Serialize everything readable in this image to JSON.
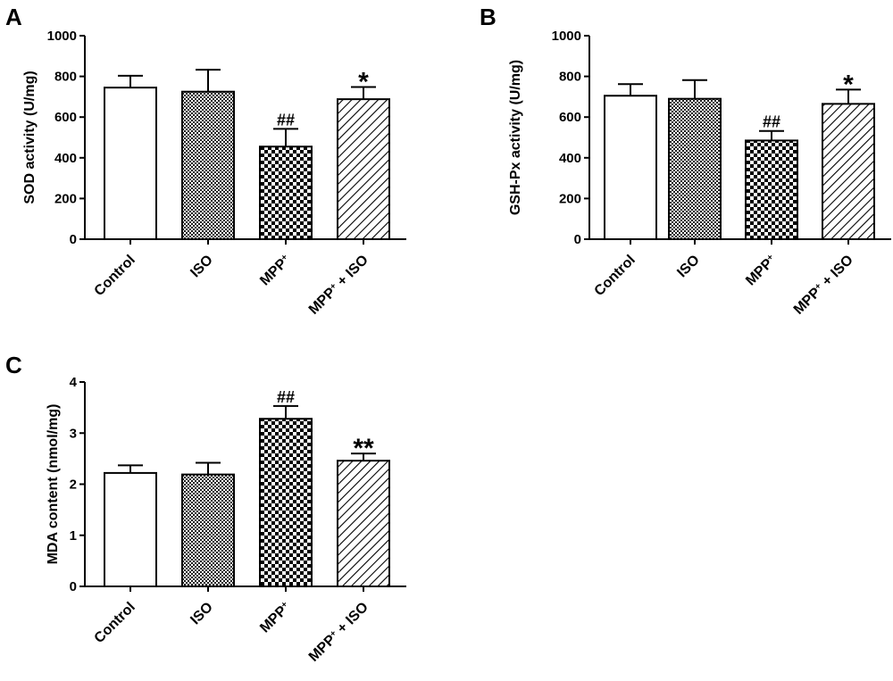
{
  "chart_data": [
    {
      "type": "bar",
      "panel": "A",
      "ylabel": "SOD activity (U/mg)",
      "ylim": [
        0,
        1000
      ],
      "yticks": [
        0,
        200,
        400,
        600,
        800,
        1000
      ],
      "categories": [
        "Control",
        "ISO",
        "MPP⁺",
        "MPP⁺ + ISO"
      ],
      "values": [
        745,
        725,
        455,
        688
      ],
      "errors": [
        58,
        108,
        87,
        60
      ],
      "annotations": [
        "",
        "",
        "##",
        "*"
      ],
      "fills": [
        "white",
        "fine-check",
        "checker",
        "diagonal-hatch"
      ]
    },
    {
      "type": "bar",
      "panel": "B",
      "ylabel": "GSH-Px activity (U/mg)",
      "ylim": [
        0,
        1000
      ],
      "yticks": [
        0,
        200,
        400,
        600,
        800,
        1000
      ],
      "categories": [
        "Control",
        "ISO",
        "MPP⁺",
        "MPP⁺ + ISO"
      ],
      "values": [
        705,
        690,
        485,
        665
      ],
      "errors": [
        57,
        92,
        47,
        70
      ],
      "annotations": [
        "",
        "",
        "##",
        "*"
      ],
      "fills": [
        "white",
        "fine-check",
        "checker",
        "diagonal-hatch"
      ]
    },
    {
      "type": "bar",
      "panel": "C",
      "ylabel": "MDA content (nmol/mg)",
      "ylim": [
        0,
        4
      ],
      "yticks": [
        0,
        1,
        2,
        3,
        4
      ],
      "categories": [
        "Control",
        "ISO",
        "MPP⁺",
        "MPP⁺ + ISO"
      ],
      "values": [
        2.22,
        2.19,
        3.28,
        2.46
      ],
      "errors": [
        0.15,
        0.23,
        0.25,
        0.14
      ],
      "annotations": [
        "",
        "",
        "##",
        "**"
      ],
      "fills": [
        "white",
        "fine-check",
        "checker",
        "diagonal-hatch"
      ]
    }
  ]
}
